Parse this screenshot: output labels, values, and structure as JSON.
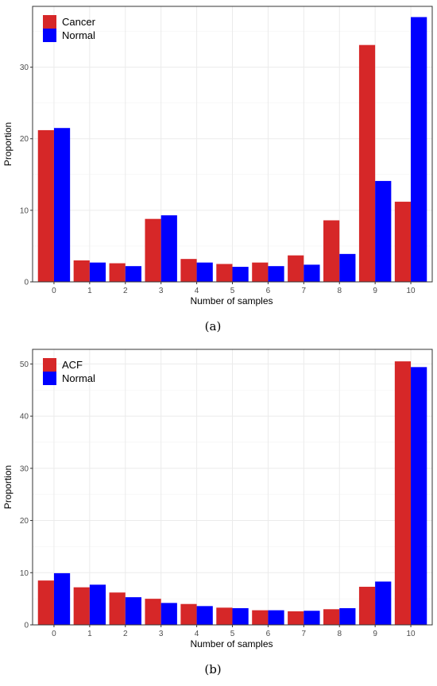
{
  "chart_data": [
    {
      "type": "bar",
      "panel_label": "(a)",
      "xlabel": "Number of samples",
      "ylabel": "Proportion",
      "categories": [
        "0",
        "1",
        "2",
        "3",
        "4",
        "5",
        "6",
        "7",
        "8",
        "9",
        "10"
      ],
      "ylim": [
        0,
        38.5
      ],
      "yticks": [
        0,
        10,
        20,
        30
      ],
      "grid": true,
      "legend_position": "top-left",
      "series": [
        {
          "name": "Cancer",
          "color": "#d62728",
          "values": [
            21.2,
            3.0,
            2.6,
            8.8,
            3.2,
            2.5,
            2.7,
            3.7,
            8.6,
            33.1,
            11.2
          ]
        },
        {
          "name": "Normal",
          "color": "#0000ff",
          "values": [
            21.5,
            2.7,
            2.2,
            9.3,
            2.7,
            2.1,
            2.2,
            2.4,
            3.9,
            14.1,
            37.0
          ]
        }
      ]
    },
    {
      "type": "bar",
      "panel_label": "(b)",
      "xlabel": "Number of samples",
      "ylabel": "Proportion",
      "categories": [
        "0",
        "1",
        "2",
        "3",
        "4",
        "5",
        "6",
        "7",
        "8",
        "9",
        "10"
      ],
      "ylim": [
        0,
        52.8
      ],
      "yticks": [
        0,
        10,
        20,
        30,
        40,
        50
      ],
      "grid": true,
      "legend_position": "top-left",
      "series": [
        {
          "name": "ACF",
          "color": "#d62728",
          "values": [
            8.5,
            7.2,
            6.2,
            5.0,
            4.0,
            3.3,
            2.8,
            2.6,
            3.0,
            7.3,
            50.5
          ]
        },
        {
          "name": "Normal",
          "color": "#0000ff",
          "values": [
            9.9,
            7.7,
            5.3,
            4.2,
            3.6,
            3.2,
            2.8,
            2.7,
            3.2,
            8.3,
            49.4
          ]
        }
      ]
    }
  ]
}
